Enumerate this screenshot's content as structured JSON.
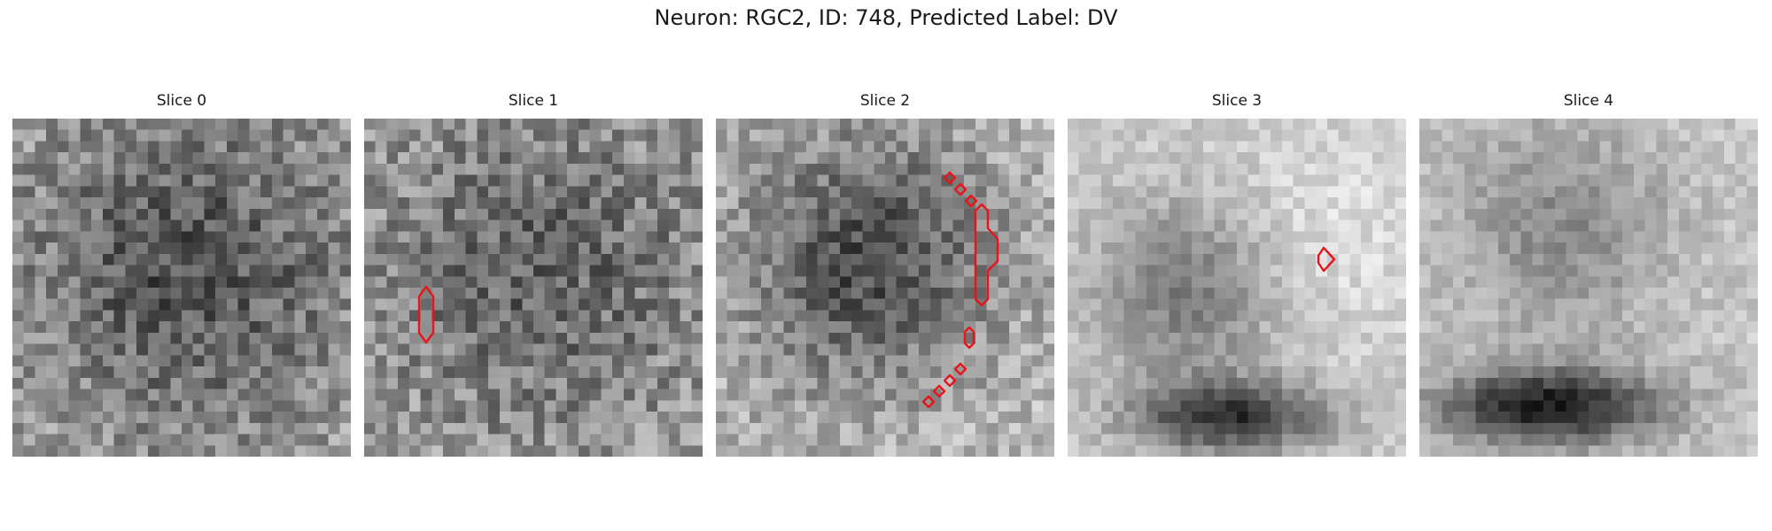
{
  "figure": {
    "title": "Neuron: RGC2, ID: 748, Predicted Label: DV"
  },
  "slices": [
    {
      "title": "Slice 0"
    },
    {
      "title": "Slice 1"
    },
    {
      "title": "Slice 2"
    },
    {
      "title": "Slice 3"
    },
    {
      "title": "Slice 4"
    }
  ],
  "colors": {
    "contour": "#e8141a",
    "colormap": "gray"
  }
}
